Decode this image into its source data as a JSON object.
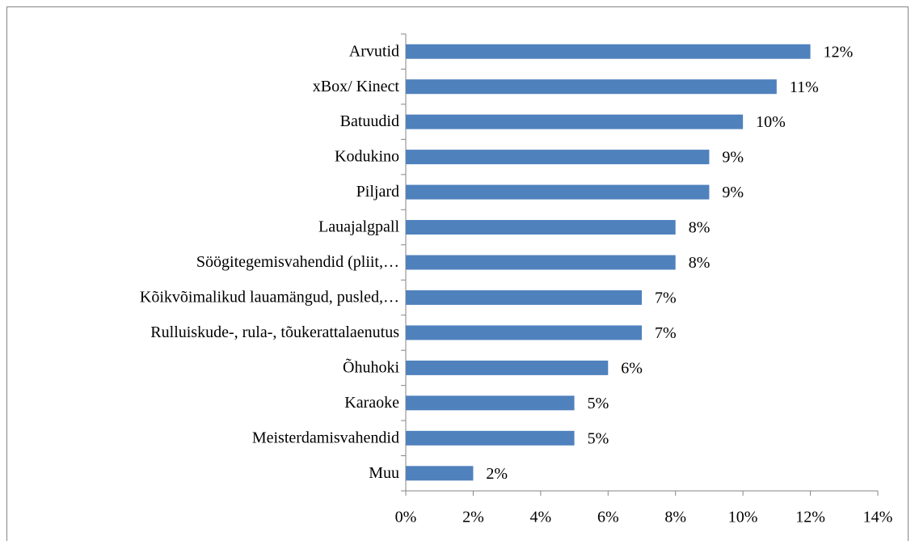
{
  "chart_data": {
    "type": "barh",
    "categories": [
      "Arvutid",
      "xBox/ Kinect",
      "Batuudid",
      "Kodukino",
      "Piljard",
      "Lauajalgpall",
      "Söögitegemisvahendid (pliit,…",
      "Kõikvõimalikud lauamängud, pusled,…",
      "Rulluiskude-, rula-, tõukerattalaenutus",
      "Õhuhoki",
      "Karaoke",
      "Meisterdamisvahendid",
      "Muu"
    ],
    "values": [
      12,
      11,
      10,
      9,
      9,
      8,
      8,
      7,
      7,
      6,
      5,
      5,
      2
    ],
    "value_labels": [
      "12%",
      "11%",
      "10%",
      "9%",
      "9%",
      "8%",
      "8%",
      "7%",
      "7%",
      "6%",
      "5%",
      "5%",
      "2%"
    ],
    "color": "#4f81bd",
    "xlim": [
      0,
      14
    ],
    "xticks": [
      {
        "value": 0,
        "label": "0%"
      },
      {
        "value": 2,
        "label": "2%"
      },
      {
        "value": 4,
        "label": "4%"
      },
      {
        "value": 6,
        "label": "6%"
      },
      {
        "value": 8,
        "label": "8%"
      },
      {
        "value": 10,
        "label": "10%"
      },
      {
        "value": 12,
        "label": "12%"
      },
      {
        "value": 14,
        "label": "14%"
      }
    ],
    "grid": false
  }
}
